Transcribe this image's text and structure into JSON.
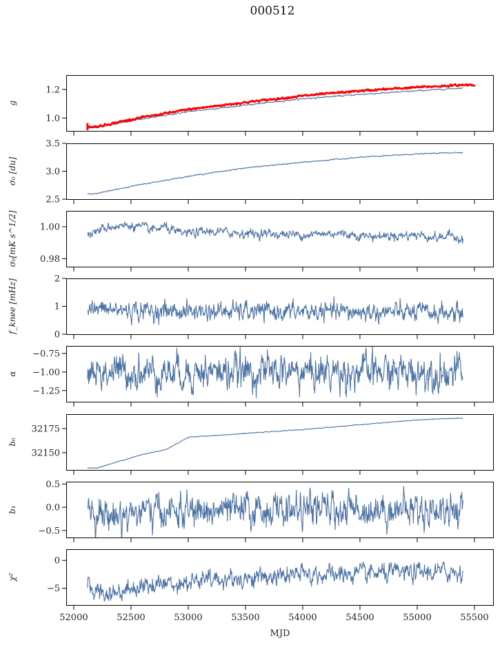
{
  "figure": {
    "title": "000512"
  },
  "chart_data": {
    "type": "line",
    "title": "000512",
    "xlabel": "MJD",
    "xlim": [
      51934,
      55669
    ],
    "xticks": [
      52000,
      52500,
      53000,
      53500,
      54000,
      54500,
      55000,
      55500
    ],
    "x_range_data": [
      52120,
      55400
    ],
    "grid": false,
    "line_color": "#4c72a4",
    "panels": [
      {
        "id": "g",
        "ylabel": "g",
        "ylim": [
          0.91,
          1.3
        ],
        "yticks": [
          1.0,
          1.2
        ],
        "ytick_labels": [
          "1.0",
          "1.2"
        ],
        "series": [
          {
            "name": "g",
            "color": "#4c72a4",
            "trend": [
              [
                52120,
                0.935
              ],
              [
                52200,
                0.935
              ],
              [
                52500,
                0.98
              ],
              [
                53000,
                1.045
              ],
              [
                53500,
                1.09
              ],
              [
                54000,
                1.135
              ],
              [
                54500,
                1.165
              ],
              [
                55000,
                1.19
              ],
              [
                55400,
                1.21
              ]
            ],
            "noise": 0.002
          },
          {
            "name": "g-reference",
            "color": "#ff0000",
            "trend": [
              [
                52120,
                0.94
              ],
              [
                52200,
                0.94
              ],
              [
                52500,
                0.99
              ],
              [
                53000,
                1.06
              ],
              [
                53500,
                1.11
              ],
              [
                54000,
                1.155
              ],
              [
                54500,
                1.19
              ],
              [
                55000,
                1.215
              ],
              [
                55500,
                1.235
              ]
            ],
            "noise": 0.003,
            "spike": {
              "x": 52120,
              "ymin": 0.915,
              "ymax": 0.965
            }
          }
        ]
      },
      {
        "id": "sigma0-du",
        "ylabel": "σ₀ [du]",
        "ylim": [
          2.5,
          3.5
        ],
        "yticks": [
          2.5,
          3.0,
          3.5
        ],
        "ytick_labels": [
          "2.5",
          "3.0",
          "3.5"
        ],
        "series": [
          {
            "name": "sigma0_du",
            "color": "#4c72a4",
            "trend": [
              [
                52120,
                2.59
              ],
              [
                52200,
                2.6
              ],
              [
                52500,
                2.73
              ],
              [
                53000,
                2.91
              ],
              [
                53500,
                3.06
              ],
              [
                54000,
                3.16
              ],
              [
                54500,
                3.25
              ],
              [
                55000,
                3.31
              ],
              [
                55400,
                3.34
              ]
            ],
            "noise": 0.004
          }
        ]
      },
      {
        "id": "sigma0-mk",
        "ylabel": "σ₀[mK s^1/2]",
        "ylim": [
          0.975,
          1.01
        ],
        "yticks": [
          0.98,
          1.0
        ],
        "ytick_labels": [
          "0.98",
          "1.00"
        ],
        "series": [
          {
            "name": "sigma0_mK",
            "color": "#4c72a4",
            "trend": [
              [
                52120,
                0.995
              ],
              [
                52300,
                1.0
              ],
              [
                52500,
                1.001
              ],
              [
                52700,
                0.998
              ],
              [
                52800,
                1.0
              ],
              [
                52900,
                0.996
              ],
              [
                53000,
                0.996
              ],
              [
                53200,
                0.997
              ],
              [
                53500,
                0.996
              ],
              [
                54000,
                0.995
              ],
              [
                54300,
                0.996
              ],
              [
                54600,
                0.994
              ],
              [
                55000,
                0.995
              ],
              [
                55200,
                0.993
              ],
              [
                55300,
                0.995
              ],
              [
                55400,
                0.992
              ]
            ],
            "noise": 0.0012
          }
        ]
      },
      {
        "id": "fknee",
        "ylabel": "f_knee [mHz]",
        "ylim": [
          0,
          2
        ],
        "yticks": [
          0,
          1,
          2
        ],
        "ytick_labels": [
          "0",
          "1",
          "2"
        ],
        "series": [
          {
            "name": "fknee",
            "color": "#4c72a4",
            "trend": [
              [
                52120,
                0.9
              ],
              [
                52500,
                0.85
              ],
              [
                53000,
                0.82
              ],
              [
                54000,
                0.8
              ],
              [
                55000,
                0.78
              ],
              [
                55400,
                0.75
              ]
            ],
            "noise": 0.14
          }
        ]
      },
      {
        "id": "alpha",
        "ylabel": "α",
        "ylim": [
          -1.4,
          -0.65
        ],
        "yticks": [
          -1.25,
          -1.0,
          -0.75
        ],
        "ytick_labels": [
          "−1.25",
          "−1.00",
          "−0.75"
        ],
        "series": [
          {
            "name": "alpha",
            "color": "#4c72a4",
            "trend": [
              [
                52120,
                -1.0
              ],
              [
                55400,
                -1.0
              ]
            ],
            "noise": 0.1
          }
        ]
      },
      {
        "id": "b0",
        "ylabel": "b₀",
        "ylim": [
          32132,
          32190
        ],
        "yticks": [
          32150,
          32175
        ],
        "ytick_labels": [
          "32150",
          "32175"
        ],
        "series": [
          {
            "name": "b0",
            "color": "#4c72a4",
            "trend": [
              [
                52120,
                32134
              ],
              [
                52200,
                32134
              ],
              [
                52400,
                32141
              ],
              [
                52600,
                32148
              ],
              [
                52800,
                32153
              ],
              [
                52880,
                32158
              ],
              [
                53000,
                32166
              ],
              [
                53500,
                32170
              ],
              [
                54000,
                32174
              ],
              [
                54500,
                32179
              ],
              [
                55000,
                32184
              ],
              [
                55400,
                32186
              ]
            ],
            "noise": 0.15
          }
        ]
      },
      {
        "id": "b1",
        "ylabel": "b₁",
        "ylim": [
          -0.65,
          0.55
        ],
        "yticks": [
          -0.5,
          0.0,
          0.5
        ],
        "ytick_labels": [
          "−0.5",
          "0.0",
          "0.5"
        ],
        "series": [
          {
            "name": "b1",
            "color": "#4c72a4",
            "trend": [
              [
                52120,
                0.0
              ],
              [
                52300,
                -0.2
              ],
              [
                52600,
                -0.1
              ],
              [
                53000,
                -0.1
              ],
              [
                54000,
                -0.05
              ],
              [
                55000,
                -0.05
              ],
              [
                55400,
                -0.05
              ]
            ],
            "noise": 0.15
          }
        ]
      },
      {
        "id": "chi2",
        "ylabel": "χ²",
        "ylim": [
          -8,
          2
        ],
        "yticks": [
          -5,
          0
        ],
        "ytick_labels": [
          "−5",
          "0"
        ],
        "series": [
          {
            "name": "chi2",
            "color": "#4c72a4",
            "trend": [
              [
                52120,
                -4.8
              ],
              [
                52300,
                -6.0
              ],
              [
                52600,
                -4.5
              ],
              [
                53000,
                -3.8
              ],
              [
                53500,
                -3.2
              ],
              [
                54000,
                -2.6
              ],
              [
                54500,
                -2.5
              ],
              [
                55000,
                -2.2
              ],
              [
                55400,
                -2.0
              ]
            ],
            "noise": 0.7
          }
        ]
      }
    ]
  }
}
